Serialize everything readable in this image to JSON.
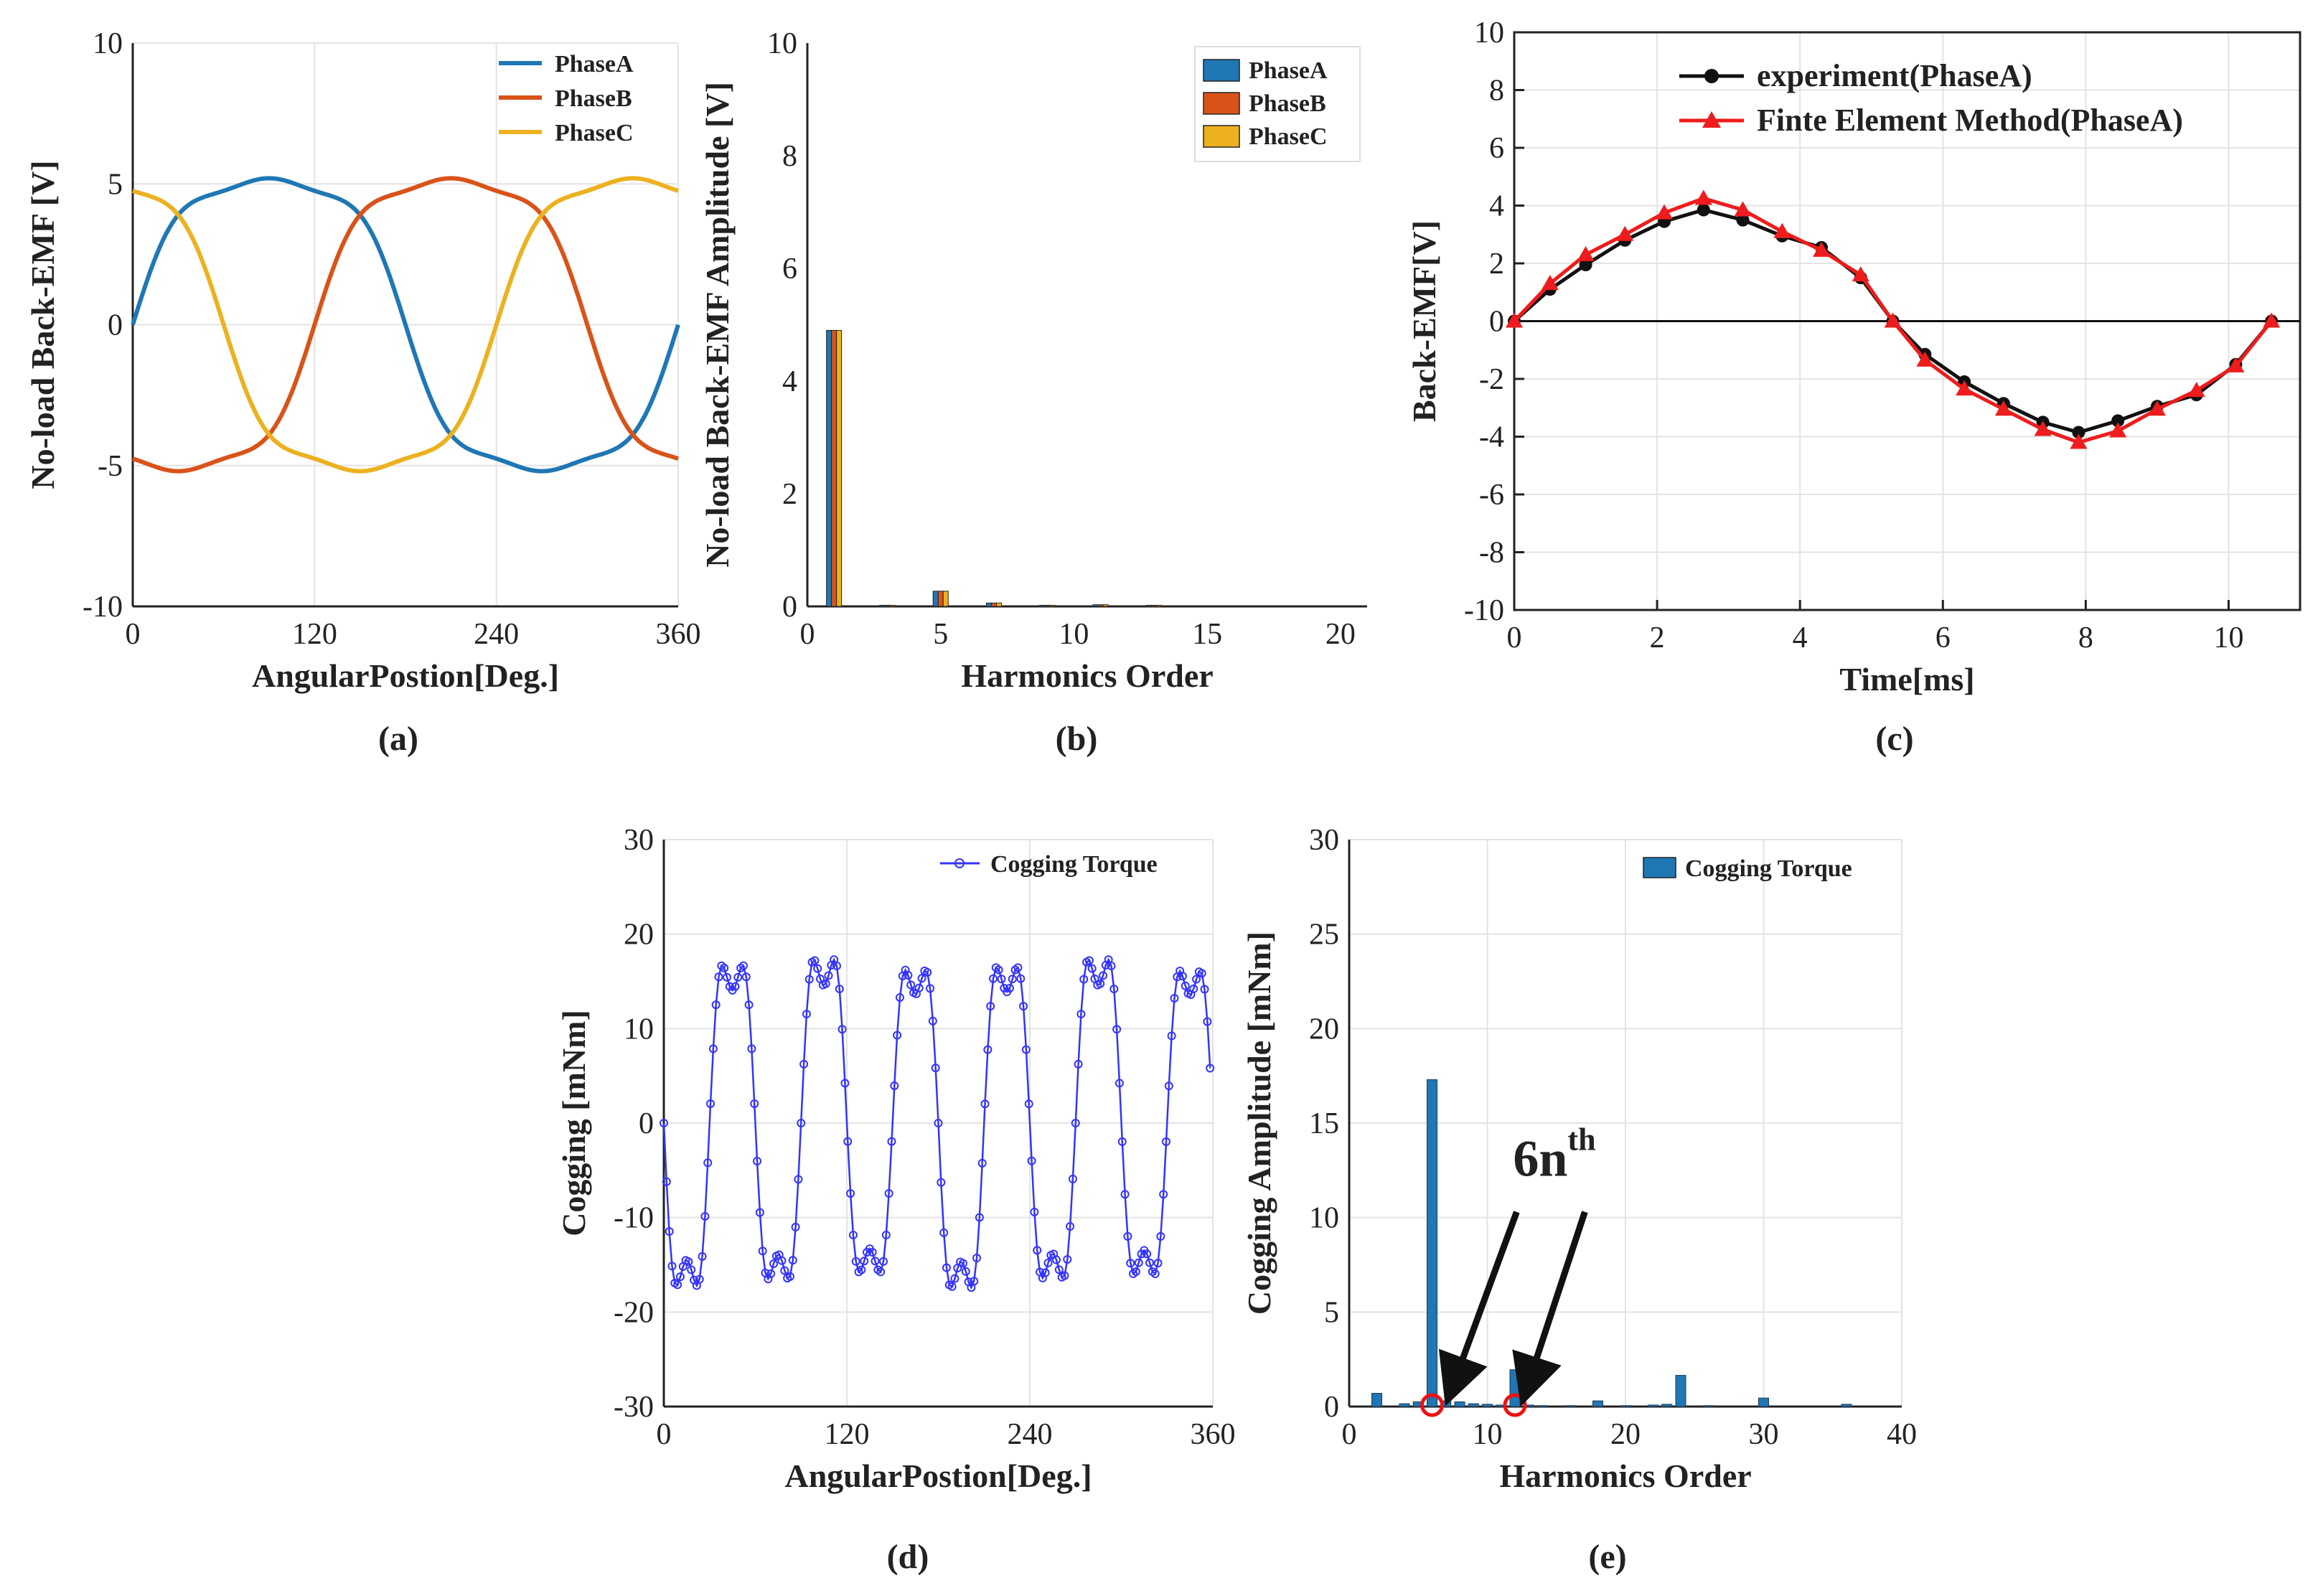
{
  "figure": {
    "captions": [
      "(a)",
      "(b)",
      "(c)",
      "(d)",
      "(e)"
    ]
  },
  "chart_data": [
    {
      "id": "a",
      "type": "line",
      "xlabel": "AngularPostion[Deg.]",
      "ylabel": "No-load Back-EMF [V]",
      "xlim": [
        0,
        360
      ],
      "ylim": [
        -10,
        10
      ],
      "xticks": [
        0,
        120,
        240,
        360
      ],
      "yticks": [
        -10,
        -5,
        0,
        5,
        10
      ],
      "grid": true,
      "legend_position": "top-right",
      "amplitude": 5.2,
      "series": [
        {
          "name": "PhaseA",
          "color": "#1f77b4",
          "phase_deg": 0
        },
        {
          "name": "PhaseB",
          "color": "#d95319",
          "phase_deg": 120
        },
        {
          "name": "PhaseC",
          "color": "#edb120",
          "phase_deg": 240
        }
      ]
    },
    {
      "id": "b",
      "type": "bar",
      "xlabel": "Harmonics Order",
      "ylabel": "No-load Back-EMF Amplitude [V]",
      "xlim": [
        0,
        21
      ],
      "ylim": [
        0,
        10
      ],
      "xticks": [
        0,
        5,
        10,
        15,
        20
      ],
      "yticks": [
        0,
        2,
        4,
        6,
        8,
        10
      ],
      "legend_position": "top-right",
      "series": [
        {
          "name": "PhaseA",
          "color": "#1f77b4",
          "harmonics": [
            1,
            3,
            5,
            7,
            9,
            11,
            13,
            15,
            17,
            19
          ],
          "values": [
            4.9,
            0.02,
            0.27,
            0.06,
            0.02,
            0.03,
            0.02,
            0.01,
            0.01,
            0.01
          ]
        },
        {
          "name": "PhaseB",
          "color": "#d95319",
          "harmonics": [
            1,
            3,
            5,
            7,
            9,
            11,
            13,
            15,
            17,
            19
          ],
          "values": [
            4.9,
            0.02,
            0.27,
            0.06,
            0.02,
            0.03,
            0.02,
            0.01,
            0.01,
            0.01
          ]
        },
        {
          "name": "PhaseC",
          "color": "#edb120",
          "harmonics": [
            1,
            3,
            5,
            7,
            9,
            11,
            13,
            15,
            17,
            19
          ],
          "values": [
            4.9,
            0.02,
            0.27,
            0.06,
            0.02,
            0.03,
            0.02,
            0.01,
            0.01,
            0.01
          ]
        }
      ]
    },
    {
      "id": "c",
      "type": "line",
      "xlabel": "Time[ms]",
      "ylabel": "Back-EMF[V]",
      "xlim": [
        0,
        11
      ],
      "ylim": [
        -10,
        10
      ],
      "xticks": [
        0,
        2,
        4,
        6,
        8,
        10
      ],
      "yticks": [
        -10,
        -8,
        -6,
        -4,
        -2,
        0,
        2,
        4,
        6,
        8,
        10
      ],
      "grid": true,
      "zero_line": true,
      "legend_position": "top-left",
      "series": [
        {
          "name": "experiment(PhaseA)",
          "color": "#111111",
          "marker": "circle",
          "x": [
            0,
            0.5,
            1.0,
            1.55,
            2.1,
            2.65,
            3.2,
            3.75,
            4.3,
            4.85,
            5.3,
            5.75,
            6.3,
            6.85,
            7.4,
            7.9,
            8.45,
            9.0,
            9.55,
            10.1,
            10.6
          ],
          "y": [
            0,
            1.1,
            1.95,
            2.8,
            3.45,
            3.85,
            3.5,
            2.95,
            2.55,
            1.5,
            0,
            -1.15,
            -2.1,
            -2.85,
            -3.5,
            -3.85,
            -3.45,
            -2.95,
            -2.55,
            -1.5,
            0
          ]
        },
        {
          "name": "Finte Element Method(PhaseA)",
          "color": "#ee1c1c",
          "marker": "triangle",
          "x": [
            0,
            0.5,
            1.0,
            1.55,
            2.1,
            2.65,
            3.2,
            3.75,
            4.3,
            4.85,
            5.3,
            5.75,
            6.3,
            6.85,
            7.4,
            7.9,
            8.45,
            9.0,
            9.55,
            10.1,
            10.6
          ],
          "y": [
            0,
            1.3,
            2.3,
            3.0,
            3.75,
            4.25,
            3.85,
            3.1,
            2.45,
            1.6,
            0,
            -1.35,
            -2.35,
            -3.05,
            -3.75,
            -4.2,
            -3.8,
            -3.05,
            -2.4,
            -1.55,
            0
          ]
        }
      ]
    },
    {
      "id": "d",
      "type": "line",
      "xlabel": "AngularPostion[Deg.]",
      "ylabel": "Cogging [mNm]",
      "xlim": [
        0,
        360
      ],
      "ylim": [
        -30,
        30
      ],
      "xticks": [
        0,
        120,
        240,
        360
      ],
      "yticks": [
        -30,
        -20,
        -10,
        0,
        10,
        20,
        30
      ],
      "grid": true,
      "legend_position": "top-right",
      "period_deg": 60,
      "peak_values": [
        16.7,
        17.3,
        16.2,
        16.5,
        17.3,
        16.1
      ],
      "trough_values": [
        -17.2,
        -16.5,
        -15.8,
        -17.4,
        -16.4,
        -16.0
      ],
      "series": [
        {
          "name": "Cogging Torque",
          "color": "#3333ff",
          "marker": "circle"
        }
      ]
    },
    {
      "id": "e",
      "type": "bar",
      "xlabel": "Harmonics Order",
      "ylabel": "Cogging Amplitude [mNm]",
      "xlim": [
        0,
        40
      ],
      "ylim": [
        0,
        30
      ],
      "xticks": [
        0,
        10,
        20,
        30,
        40
      ],
      "yticks": [
        0,
        5,
        10,
        15,
        20,
        25,
        30
      ],
      "grid": true,
      "legend_position": "top-right",
      "series": [
        {
          "name": "Cogging Torque",
          "color": "#1f77b4",
          "harmonics": [
            2,
            4,
            5,
            6,
            7,
            8,
            9,
            10,
            11,
            12,
            13,
            14,
            16,
            18,
            20,
            22,
            23,
            24,
            26,
            30,
            36
          ],
          "values": [
            0.7,
            0.15,
            0.25,
            17.3,
            0.3,
            0.25,
            0.15,
            0.12,
            0.08,
            1.95,
            0.08,
            0.05,
            0.05,
            0.3,
            0.05,
            0.08,
            0.12,
            1.65,
            0.05,
            0.45,
            0.12
          ]
        }
      ],
      "annotation": {
        "text": "6n",
        "superscript": "th",
        "circled_harmonics": [
          6,
          12
        ]
      }
    }
  ]
}
